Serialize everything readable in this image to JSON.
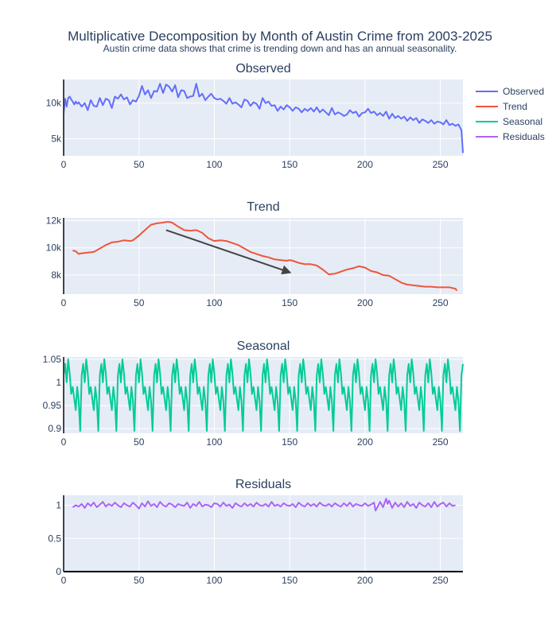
{
  "chart_data": {
    "type": "line",
    "title": "Multiplicative Decomposition by Month of Austin Crime from 2003-2025",
    "subtitle": "Austin crime data shows that crime is trending down and has an annual seasonality.",
    "xlim": [
      0,
      265
    ],
    "x_ticks": [
      0,
      50,
      100,
      150,
      200,
      250
    ],
    "colors": {
      "observed": "#636efa",
      "trend": "#ef553b",
      "seasonal": "#00cc96",
      "residuals": "#ab63fa",
      "arrow": "#444444"
    },
    "legend": [
      "Observed",
      "Trend",
      "Seasonal",
      "Residuals"
    ],
    "legend_position": "top-right",
    "panels": [
      {
        "key": "observed",
        "title": "Observed",
        "ylim": [
          2600,
          13300
        ],
        "y_ticks": [
          5000,
          10000
        ],
        "y_tick_labels": [
          "5k",
          "10k"
        ],
        "series": {
          "name": "Observed",
          "x": [
            0,
            1,
            2,
            3,
            4,
            5,
            6,
            7,
            8,
            9,
            10,
            12,
            14,
            16,
            18,
            20,
            22,
            24,
            26,
            28,
            30,
            32,
            34,
            36,
            38,
            40,
            42,
            44,
            46,
            48,
            50,
            52,
            54,
            56,
            58,
            60,
            62,
            64,
            66,
            68,
            70,
            72,
            74,
            76,
            78,
            80,
            82,
            84,
            86,
            88,
            90,
            92,
            94,
            96,
            98,
            100,
            102,
            104,
            106,
            108,
            110,
            112,
            114,
            116,
            118,
            120,
            122,
            124,
            126,
            128,
            130,
            132,
            134,
            136,
            138,
            140,
            142,
            144,
            146,
            148,
            150,
            152,
            154,
            156,
            158,
            160,
            162,
            164,
            166,
            168,
            170,
            172,
            174,
            176,
            178,
            180,
            182,
            184,
            186,
            188,
            190,
            192,
            194,
            196,
            198,
            200,
            202,
            204,
            206,
            208,
            210,
            212,
            214,
            216,
            218,
            220,
            222,
            224,
            226,
            228,
            230,
            232,
            234,
            236,
            238,
            240,
            242,
            244,
            246,
            248,
            250,
            252,
            254,
            256,
            258,
            260,
            262,
            263,
            264,
            265
          ],
          "y": [
            8500,
            10600,
            9500,
            10700,
            10900,
            10500,
            10200,
            9800,
            10200,
            9900,
            10100,
            9500,
            10000,
            9000,
            10400,
            9600,
            9500,
            10700,
            9700,
            10600,
            10400,
            9300,
            10900,
            10600,
            11200,
            10500,
            10800,
            9800,
            10400,
            10200,
            11000,
            12400,
            11200,
            11800,
            10700,
            11700,
            11600,
            12700,
            11400,
            12600,
            12300,
            11600,
            12500,
            10800,
            11800,
            11700,
            10700,
            10900,
            11000,
            12700,
            10900,
            11300,
            10400,
            10900,
            11300,
            10700,
            10500,
            10600,
            10300,
            9900,
            10700,
            9900,
            10100,
            9800,
            9400,
            10500,
            10300,
            9600,
            10100,
            9900,
            9200,
            10700,
            10000,
            10200,
            9600,
            9700,
            8900,
            9500,
            9100,
            9700,
            9400,
            8900,
            9400,
            9200,
            8700,
            9200,
            8900,
            9300,
            8800,
            9400,
            8700,
            9100,
            8700,
            8300,
            9300,
            8400,
            8700,
            8500,
            8200,
            8400,
            9000,
            8600,
            8800,
            8100,
            8600,
            8700,
            9200,
            8600,
            8800,
            8300,
            8600,
            8200,
            8800,
            7800,
            8500,
            7900,
            8200,
            7800,
            8100,
            7500,
            8000,
            7600,
            7900,
            7200,
            7700,
            7500,
            7200,
            7600,
            7100,
            7400,
            7300,
            7000,
            7600,
            6900,
            7100,
            6800,
            7000,
            6600,
            6200,
            3000
          ]
        }
      },
      {
        "key": "trend",
        "title": "Trend",
        "ylim": [
          6600,
          12200
        ],
        "y_ticks": [
          8000,
          10000,
          12000
        ],
        "y_tick_labels": [
          "8k",
          "10k",
          "12k"
        ],
        "series": {
          "name": "Trend",
          "x": [
            6,
            8,
            10,
            12,
            16,
            20,
            24,
            28,
            32,
            36,
            40,
            44,
            46,
            50,
            54,
            58,
            62,
            66,
            68,
            70,
            72,
            76,
            80,
            84,
            88,
            92,
            96,
            100,
            104,
            108,
            112,
            116,
            120,
            124,
            128,
            132,
            136,
            140,
            144,
            148,
            150,
            152,
            156,
            160,
            164,
            168,
            172,
            176,
            180,
            184,
            188,
            192,
            196,
            200,
            204,
            208,
            212,
            216,
            220,
            224,
            228,
            232,
            236,
            240,
            244,
            248,
            252,
            256,
            258,
            260,
            261
          ],
          "y": [
            9800,
            9750,
            9550,
            9600,
            9650,
            9700,
            9950,
            10200,
            10400,
            10450,
            10550,
            10500,
            10550,
            10900,
            11300,
            11700,
            11800,
            11850,
            11900,
            11900,
            11850,
            11550,
            11300,
            11250,
            11300,
            11100,
            10700,
            10500,
            10550,
            10500,
            10350,
            10200,
            9950,
            9700,
            9550,
            9400,
            9300,
            9150,
            9100,
            9050,
            9100,
            9050,
            8900,
            8800,
            8800,
            8700,
            8400,
            8050,
            8100,
            8250,
            8400,
            8500,
            8650,
            8550,
            8300,
            8200,
            8000,
            7950,
            7700,
            7450,
            7300,
            7250,
            7200,
            7150,
            7150,
            7100,
            7100,
            7100,
            7050,
            7000,
            6850
          ]
        },
        "arrow": {
          "x0": 68,
          "y0": 11300,
          "x1": 150,
          "y1": 8200
        }
      },
      {
        "key": "seasonal",
        "title": "Seasonal",
        "ylim": [
          0.89,
          1.055
        ],
        "y_ticks": [
          0.9,
          0.95,
          1,
          1.05
        ],
        "y_tick_labels": [
          "0.9",
          "0.95",
          "1",
          "1.05"
        ],
        "period": 12,
        "pattern": [
          1.015,
          1.04,
          1.0,
          1.05,
          1.02,
          0.975,
          0.99,
          0.965,
          0.94,
          0.99,
          0.96,
          0.895
        ],
        "series": {
          "name": "Seasonal"
        }
      },
      {
        "key": "residuals",
        "title": "Residuals",
        "ylim": [
          0,
          1.15
        ],
        "y_ticks": [
          0,
          0.5,
          1
        ],
        "y_tick_labels": [
          "0",
          "0.5",
          "1"
        ],
        "series": {
          "name": "Residuals",
          "x": [
            6,
            8,
            10,
            12,
            14,
            16,
            18,
            20,
            22,
            24,
            26,
            28,
            30,
            32,
            34,
            36,
            38,
            40,
            42,
            44,
            46,
            48,
            50,
            52,
            54,
            56,
            58,
            60,
            62,
            64,
            66,
            68,
            70,
            72,
            74,
            76,
            78,
            80,
            82,
            84,
            86,
            88,
            90,
            92,
            94,
            96,
            98,
            100,
            102,
            104,
            106,
            108,
            110,
            112,
            114,
            116,
            118,
            120,
            122,
            124,
            126,
            128,
            130,
            132,
            134,
            136,
            138,
            140,
            142,
            144,
            146,
            148,
            150,
            152,
            154,
            156,
            158,
            160,
            162,
            164,
            166,
            168,
            170,
            172,
            174,
            176,
            178,
            180,
            182,
            184,
            186,
            188,
            190,
            192,
            194,
            196,
            198,
            200,
            202,
            204,
            206,
            207,
            208,
            210,
            212,
            214,
            215,
            216,
            218,
            220,
            222,
            224,
            226,
            228,
            230,
            232,
            234,
            236,
            238,
            240,
            242,
            244,
            246,
            248,
            250,
            252,
            254,
            256,
            258,
            260
          ],
          "y": [
            0.97,
            1.0,
            0.98,
            1.02,
            0.96,
            1.03,
            0.99,
            1.04,
            0.97,
            1.01,
            1.05,
            0.98,
            1.02,
            0.99,
            1.04,
            1.0,
            0.97,
            1.03,
            1.0,
            0.98,
            1.04,
            1.0,
            0.95,
            1.03,
            0.98,
            1.06,
            0.99,
            1.02,
            0.97,
            1.05,
            1.0,
            0.98,
            1.03,
            1.01,
            0.97,
            1.02,
            1.0,
            0.99,
            1.04,
            0.96,
            1.02,
            0.99,
            1.05,
            0.98,
            1.01,
            1.0,
            0.97,
            1.03,
            1.02,
            0.98,
            1.04,
            0.99,
            1.01,
            0.96,
            1.03,
            1.0,
            0.98,
            1.03,
            0.99,
            1.02,
            0.98,
            1.04,
            1.0,
            0.99,
            1.02,
            0.98,
            1.05,
            0.99,
            1.01,
            0.98,
            1.03,
            1.0,
            0.99,
            1.02,
            0.97,
            1.04,
            1.0,
            0.98,
            1.03,
            0.99,
            1.02,
            0.98,
            1.04,
            1.0,
            0.99,
            1.02,
            0.98,
            1.03,
            1.0,
            0.98,
            1.03,
            0.99,
            1.04,
            0.98,
            1.02,
            1.0,
            0.99,
            1.03,
            0.99,
            1.01,
            1.04,
            0.92,
            0.96,
            1.05,
            0.97,
            1.1,
            1.02,
            1.07,
            0.96,
            1.04,
            0.98,
            1.03,
            0.97,
            1.05,
            0.99,
            1.02,
            0.96,
            1.04,
            1.0,
            0.98,
            1.03,
            0.97,
            1.05,
            0.98,
            1.02,
            1.04,
            0.98,
            1.03,
            0.99,
            1.0
          ]
        }
      }
    ]
  }
}
